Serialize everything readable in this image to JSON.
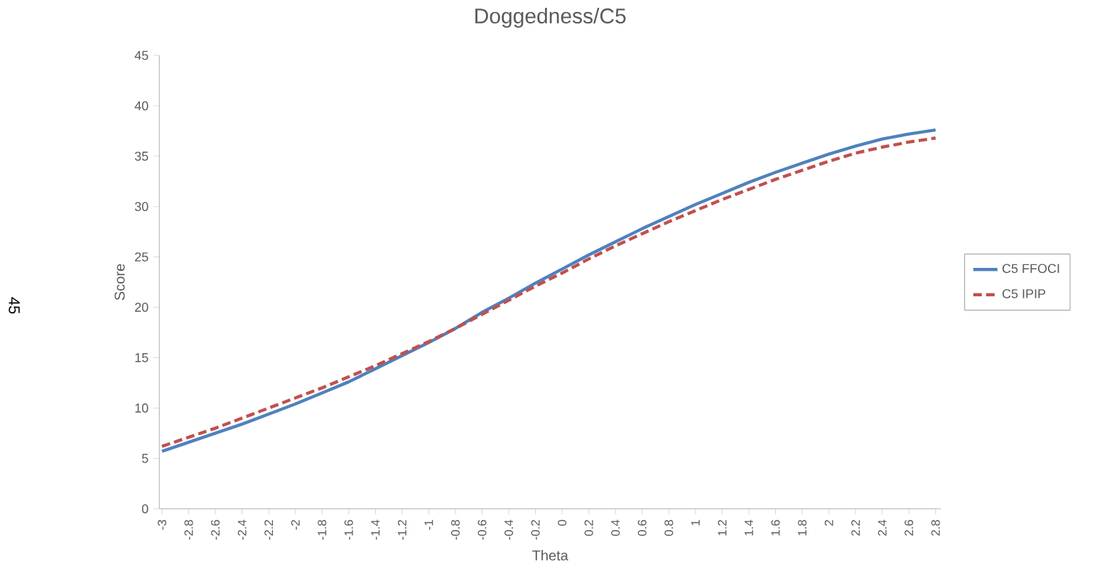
{
  "chart_data": {
    "type": "line",
    "title": "Doggedness/C5",
    "xlabel": "Theta",
    "ylabel": "Score",
    "categories": [
      "-3",
      "-2.8",
      "-2.6",
      "-2.4",
      "-2.2",
      "-2",
      "-1.8",
      "-1.6",
      "-1.4",
      "-1.2",
      "-1",
      "-0.8",
      "-0.6",
      "-0.4",
      "-0.2",
      "0",
      "0.2",
      "0.4",
      "0.6",
      "0.8",
      "1",
      "1.2",
      "1.4",
      "1.6",
      "1.8",
      "2",
      "2.2",
      "2.4",
      "2.6",
      "2.8"
    ],
    "series": [
      {
        "name": "C5 FFOCI",
        "color": "#4f81bd",
        "line_style": "solid",
        "values": [
          5.7,
          6.6,
          7.5,
          8.4,
          9.4,
          10.4,
          11.5,
          12.6,
          13.9,
          15.2,
          16.5,
          17.9,
          19.5,
          20.9,
          22.4,
          23.8,
          25.2,
          26.5,
          27.8,
          29.0,
          30.2,
          31.3,
          32.4,
          33.4,
          34.3,
          35.2,
          36.0,
          36.7,
          37.2,
          37.6
        ]
      },
      {
        "name": "C5 IPIP",
        "color": "#c0504d",
        "line_style": "dashed",
        "values": [
          6.2,
          7.1,
          8.0,
          9.0,
          10.0,
          11.0,
          12.0,
          13.1,
          14.2,
          15.4,
          16.6,
          17.9,
          19.3,
          20.7,
          22.1,
          23.4,
          24.8,
          26.1,
          27.3,
          28.5,
          29.6,
          30.7,
          31.7,
          32.7,
          33.6,
          34.5,
          35.3,
          35.9,
          36.4,
          36.8
        ]
      }
    ],
    "ylim": [
      0,
      45
    ],
    "yticks": [
      0,
      5,
      10,
      15,
      20,
      25,
      30,
      35,
      40,
      45
    ],
    "grid": false,
    "legend": "right",
    "marker": "none",
    "annotations": [
      "45"
    ]
  }
}
